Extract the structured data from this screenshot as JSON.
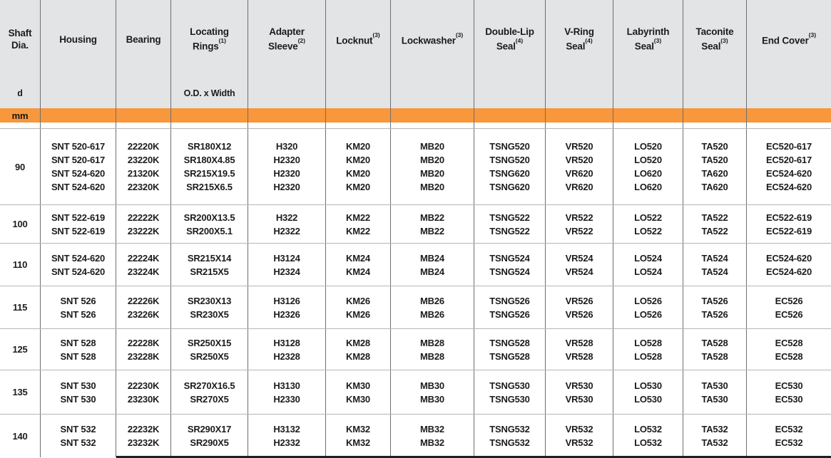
{
  "colors": {
    "orange_band": "#F8973B",
    "header_background": "#E3E4E6",
    "grid_dark": "#6E6F71",
    "grid_light": "#B4B5B7",
    "text": "#1C1C1C"
  },
  "table": {
    "unit_label": "mm",
    "columns": [
      {
        "lines": [
          "Shaft",
          "Dia."
        ],
        "sup": "",
        "sub": "d"
      },
      {
        "lines": [
          "Housing"
        ],
        "sup": "",
        "sub": ""
      },
      {
        "lines": [
          "Bearing"
        ],
        "sup": "",
        "sub": ""
      },
      {
        "lines": [
          "Locating",
          "Rings"
        ],
        "sup": "(1)",
        "sub": "O.D. x Width"
      },
      {
        "lines": [
          "Adapter",
          "Sleeve"
        ],
        "sup": "(2)",
        "sub": ""
      },
      {
        "lines": [
          "Locknut"
        ],
        "sup": "(3)",
        "sub": ""
      },
      {
        "lines": [
          "Lockwasher"
        ],
        "sup": "(3)",
        "sub": ""
      },
      {
        "lines": [
          "Double-Lip",
          "Seal"
        ],
        "sup": "(4)",
        "sub": ""
      },
      {
        "lines": [
          "V-Ring",
          "Seal"
        ],
        "sup": "(4)",
        "sub": ""
      },
      {
        "lines": [
          "Labyrinth",
          "Seal"
        ],
        "sup": "(3)",
        "sub": ""
      },
      {
        "lines": [
          "Taconite",
          "Seal"
        ],
        "sup": "(3)",
        "sub": ""
      },
      {
        "lines": [
          "End Cover"
        ],
        "sup": "(3)",
        "sub": ""
      }
    ],
    "groups": [
      {
        "shaft_dia": "90",
        "rows": [
          [
            "SNT 520-617",
            "22220K",
            "SR180X12",
            "H320",
            "KM20",
            "MB20",
            "TSNG520",
            "VR520",
            "LO520",
            "TA520",
            "EC520-617"
          ],
          [
            "SNT 520-617",
            "23220K",
            "SR180X4.85",
            "H2320",
            "KM20",
            "MB20",
            "TSNG520",
            "VR520",
            "LO520",
            "TA520",
            "EC520-617"
          ],
          [
            "SNT 524-620",
            "21320K",
            "SR215X19.5",
            "H2320",
            "KM20",
            "MB20",
            "TSNG620",
            "VR620",
            "LO620",
            "TA620",
            "EC524-620"
          ],
          [
            "SNT 524-620",
            "22320K",
            "SR215X6.5",
            "H2320",
            "KM20",
            "MB20",
            "TSNG620",
            "VR620",
            "LO620",
            "TA620",
            "EC524-620"
          ]
        ]
      },
      {
        "shaft_dia": "100",
        "rows": [
          [
            "SNT 522-619",
            "22222K",
            "SR200X13.5",
            "H322",
            "KM22",
            "MB22",
            "TSNG522",
            "VR522",
            "LO522",
            "TA522",
            "EC522-619"
          ],
          [
            "SNT 522-619",
            "23222K",
            "SR200X5.1",
            "H2322",
            "KM22",
            "MB22",
            "TSNG522",
            "VR522",
            "LO522",
            "TA522",
            "EC522-619"
          ]
        ]
      },
      {
        "shaft_dia": "110",
        "rows": [
          [
            "SNT 524-620",
            "22224K",
            "SR215X14",
            "H3124",
            "KM24",
            "MB24",
            "TSNG524",
            "VR524",
            "LO524",
            "TA524",
            "EC524-620"
          ],
          [
            "SNT 524-620",
            "23224K",
            "SR215X5",
            "H2324",
            "KM24",
            "MB24",
            "TSNG524",
            "VR524",
            "LO524",
            "TA524",
            "EC524-620"
          ]
        ]
      },
      {
        "shaft_dia": "115",
        "rows": [
          [
            "SNT 526",
            "22226K",
            "SR230X13",
            "H3126",
            "KM26",
            "MB26",
            "TSNG526",
            "VR526",
            "LO526",
            "TA526",
            "EC526"
          ],
          [
            "SNT 526",
            "23226K",
            "SR230X5",
            "H2326",
            "KM26",
            "MB26",
            "TSNG526",
            "VR526",
            "LO526",
            "TA526",
            "EC526"
          ]
        ]
      },
      {
        "shaft_dia": "125",
        "rows": [
          [
            "SNT 528",
            "22228K",
            "SR250X15",
            "H3128",
            "KM28",
            "MB28",
            "TSNG528",
            "VR528",
            "LO528",
            "TA528",
            "EC528"
          ],
          [
            "SNT 528",
            "23228K",
            "SR250X5",
            "H2328",
            "KM28",
            "MB28",
            "TSNG528",
            "VR528",
            "LO528",
            "TA528",
            "EC528"
          ]
        ]
      },
      {
        "shaft_dia": "135",
        "rows": [
          [
            "SNT 530",
            "22230K",
            "SR270X16.5",
            "H3130",
            "KM30",
            "MB30",
            "TSNG530",
            "VR530",
            "LO530",
            "TA530",
            "EC530"
          ],
          [
            "SNT 530",
            "23230K",
            "SR270X5",
            "H2330",
            "KM30",
            "MB30",
            "TSNG530",
            "VR530",
            "LO530",
            "TA530",
            "EC530"
          ]
        ]
      },
      {
        "shaft_dia": "140",
        "rows": [
          [
            "SNT 532",
            "22232K",
            "SR290X17",
            "H3132",
            "KM32",
            "MB32",
            "TSNG532",
            "VR532",
            "LO532",
            "TA532",
            "EC532"
          ],
          [
            "SNT 532",
            "23232K",
            "SR290X5",
            "H2332",
            "KM32",
            "MB32",
            "TSNG532",
            "VR532",
            "LO532",
            "TA532",
            "EC532"
          ]
        ]
      }
    ]
  }
}
